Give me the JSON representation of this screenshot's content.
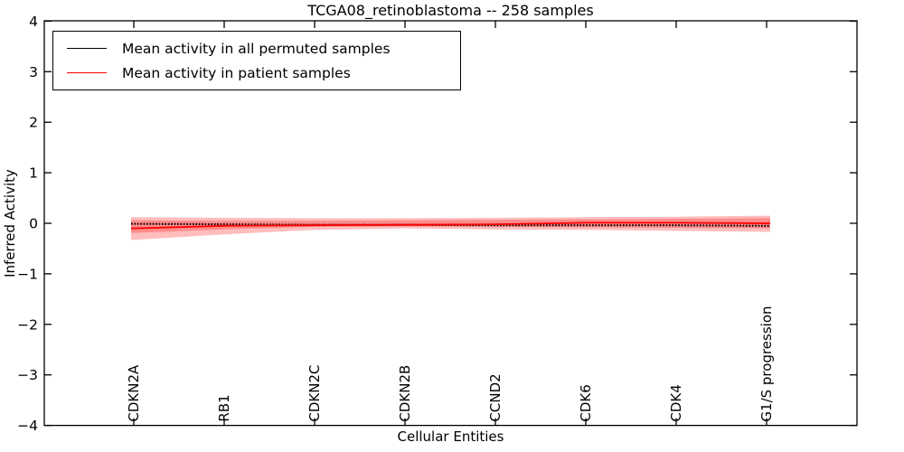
{
  "figure": {
    "title": "TCGA08_retinoblastoma -- 258 samples",
    "xlabel": "Cellular Entities",
    "ylabel": "Inferred Activity"
  },
  "legend": {
    "position": "upper left",
    "items": [
      {
        "label": "Mean activity in all permuted samples",
        "color": "#000000"
      },
      {
        "label": "Mean activity in patient samples",
        "color": "#ff0000"
      }
    ]
  },
  "chart_data": {
    "type": "line",
    "title": "TCGA08_retinoblastoma -- 258 samples",
    "xlabel": "Cellular Entities",
    "ylabel": "Inferred Activity",
    "ylim": [
      -4,
      4
    ],
    "yticks": [
      -4,
      -3,
      -2,
      -1,
      0,
      1,
      2,
      3,
      4
    ],
    "grid": false,
    "legend_position": "upper left",
    "categories": [
      "CDKN2A",
      "RB1",
      "CDKN2C",
      "CDKN2B",
      "CCND2",
      "CDK6",
      "CDK4",
      "G1/S progression"
    ],
    "series": [
      {
        "name": "Mean activity in all permuted samples",
        "color": "#000000",
        "style": "dotted",
        "values": [
          -0.01,
          -0.02,
          -0.03,
          -0.03,
          -0.04,
          -0.04,
          -0.04,
          -0.05
        ]
      },
      {
        "name": "Mean activity in patient samples",
        "color": "#ff0000",
        "style": "solid",
        "values": [
          -0.1,
          -0.05,
          -0.04,
          -0.03,
          -0.02,
          0.01,
          0.01,
          0.0
        ]
      }
    ],
    "bands": [
      {
        "name": "patient-samples-outer-band",
        "color": "rgba(255,0,0,0.26)",
        "upper": [
          0.12,
          0.11,
          0.1,
          0.1,
          0.11,
          0.12,
          0.13,
          0.15
        ],
        "lower": [
          -0.33,
          -0.22,
          -0.13,
          -0.1,
          -0.12,
          -0.13,
          -0.15,
          -0.17
        ]
      },
      {
        "name": "patient-samples-inner-band",
        "color": "rgba(255,0,0,0.26)",
        "upper": [
          0.06,
          0.05,
          0.05,
          0.06,
          0.07,
          0.08,
          0.09,
          0.1
        ],
        "lower": [
          -0.19,
          -0.12,
          -0.07,
          -0.06,
          -0.07,
          -0.08,
          -0.09,
          -0.1
        ]
      }
    ]
  }
}
